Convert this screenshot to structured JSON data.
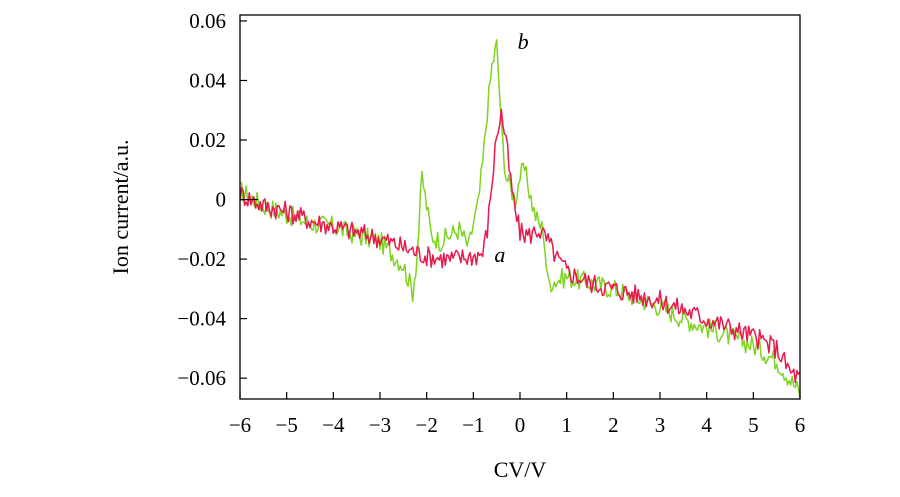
{
  "chart_data": {
    "type": "line",
    "title": "",
    "xlabel": "CV/V",
    "ylabel": "Ion current/a.u.",
    "xlim": [
      -6,
      6
    ],
    "ylim": [
      -0.067,
      0.062
    ],
    "grid": false,
    "x_ticks": [
      -6,
      -5,
      -4,
      -3,
      -2,
      -1,
      0,
      1,
      2,
      3,
      4,
      5,
      6
    ],
    "x_tick_labels": [
      "−6",
      "−5",
      "−4",
      "−3",
      "−2",
      "−1",
      "0",
      "1",
      "2",
      "3",
      "4",
      "5",
      "6"
    ],
    "y_ticks": [
      0.06,
      0.04,
      0.02,
      0,
      -0.02,
      -0.04,
      -0.06
    ],
    "y_tick_labels": [
      "0.06",
      "0.04",
      "0.02",
      "0",
      "−0.02",
      "−0.04",
      "−0.06"
    ],
    "series": [
      {
        "name": "b",
        "color": "#7ed321",
        "x": [
          -6.0,
          -5.5,
          -5.0,
          -4.5,
          -4.0,
          -3.5,
          -3.0,
          -2.5,
          -2.3,
          -2.2,
          -2.1,
          -2.0,
          -1.9,
          -1.7,
          -1.5,
          -1.3,
          -1.1,
          -1.0,
          -0.9,
          -0.8,
          -0.7,
          -0.6,
          -0.5,
          -0.45,
          -0.4,
          -0.3,
          -0.2,
          -0.1,
          0.0,
          0.1,
          0.2,
          0.3,
          0.4,
          0.5,
          0.6,
          0.8,
          1.0,
          1.5,
          2.0,
          2.5,
          3.0,
          3.5,
          4.0,
          4.5,
          5.0,
          5.5,
          6.0
        ],
        "y": [
          0.003,
          -0.002,
          -0.005,
          -0.008,
          -0.009,
          -0.012,
          -0.014,
          -0.022,
          -0.031,
          -0.018,
          0.008,
          -0.002,
          -0.012,
          -0.014,
          -0.012,
          -0.01,
          -0.016,
          -0.008,
          -0.002,
          0.012,
          0.03,
          0.045,
          0.052,
          0.04,
          0.024,
          0.008,
          0.004,
          0.0,
          0.008,
          0.01,
          0.003,
          -0.004,
          -0.008,
          -0.01,
          -0.028,
          -0.027,
          -0.026,
          -0.028,
          -0.03,
          -0.033,
          -0.036,
          -0.04,
          -0.043,
          -0.046,
          -0.049,
          -0.054,
          -0.065
        ]
      },
      {
        "name": "a",
        "color": "#e8194d",
        "x": [
          -6.0,
          -5.5,
          -5.0,
          -4.5,
          -4.0,
          -3.5,
          -3.0,
          -2.5,
          -2.0,
          -1.5,
          -1.0,
          -0.8,
          -0.7,
          -0.6,
          -0.5,
          -0.4,
          -0.3,
          -0.2,
          -0.1,
          0.0,
          0.2,
          0.4,
          0.6,
          0.8,
          1.0,
          1.5,
          2.0,
          2.5,
          3.0,
          3.5,
          4.0,
          4.5,
          5.0,
          5.5,
          5.8,
          6.0
        ],
        "y": [
          0.002,
          -0.002,
          -0.004,
          -0.007,
          -0.009,
          -0.011,
          -0.013,
          -0.016,
          -0.019,
          -0.02,
          -0.019,
          -0.018,
          -0.01,
          0.006,
          0.022,
          0.029,
          0.02,
          0.006,
          -0.004,
          -0.011,
          -0.012,
          -0.01,
          -0.014,
          -0.02,
          -0.024,
          -0.028,
          -0.03,
          -0.032,
          -0.034,
          -0.037,
          -0.04,
          -0.043,
          -0.046,
          -0.05,
          -0.058,
          -0.06
        ]
      }
    ]
  }
}
